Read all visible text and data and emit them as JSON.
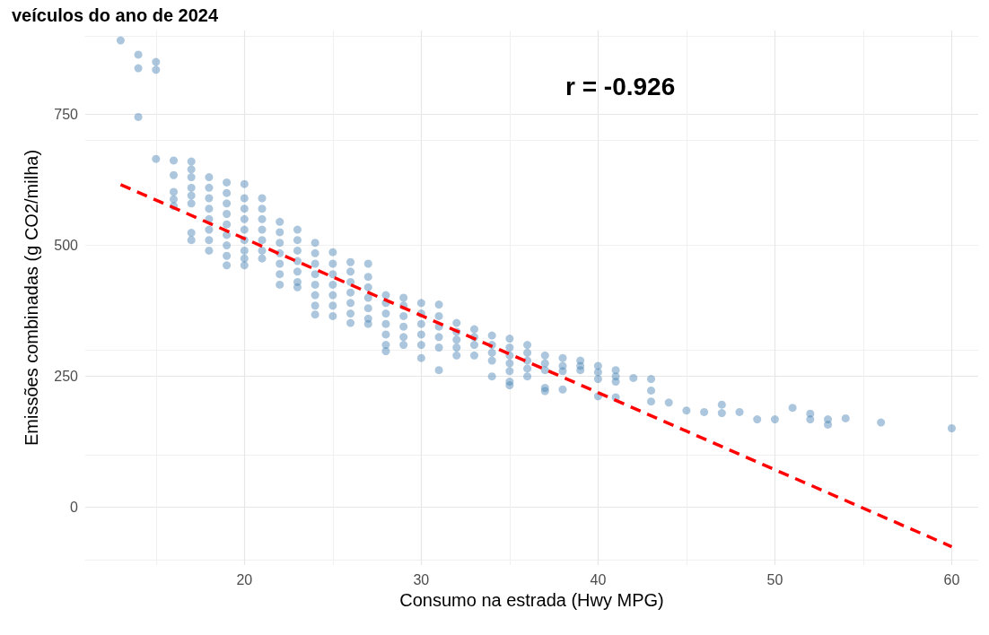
{
  "chart_data": {
    "type": "scatter",
    "title": "veículos do ano de 2024",
    "xlabel": "Consumo na estrada (Hwy MPG)",
    "ylabel": "Emissões combinadas (g CO2/milha)",
    "annotations": [
      "r = -0.926"
    ],
    "xlim": [
      11,
      61.5
    ],
    "ylim": [
      -110,
      910
    ],
    "xticks": [
      20,
      30,
      40,
      50,
      60
    ],
    "yticks": [
      0,
      250,
      500,
      750
    ],
    "grid": true,
    "marker": "circle",
    "series": [
      {
        "color": "#4682b4",
        "x": [
          13,
          14,
          14,
          14,
          15,
          15,
          15,
          16,
          16,
          16,
          16,
          16,
          17,
          17,
          17,
          17,
          17,
          17,
          17,
          17,
          18,
          18,
          18,
          18,
          18,
          18,
          18,
          18,
          19,
          19,
          19,
          19,
          19,
          19,
          19,
          19,
          19,
          20,
          20,
          20,
          20,
          20,
          20,
          20,
          20,
          20,
          21,
          21,
          21,
          21,
          21,
          21,
          21,
          22,
          22,
          22,
          22,
          22,
          22,
          22,
          23,
          23,
          23,
          23,
          23,
          23,
          23,
          24,
          24,
          24,
          24,
          24,
          24,
          24,
          24,
          25,
          25,
          25,
          25,
          25,
          25,
          25,
          26,
          26,
          26,
          26,
          26,
          26,
          26,
          27,
          27,
          27,
          27,
          27,
          27,
          27,
          28,
          28,
          28,
          28,
          28,
          28,
          28,
          29,
          29,
          29,
          29,
          29,
          29,
          30,
          30,
          30,
          30,
          30,
          30,
          31,
          31,
          31,
          31,
          31,
          31,
          32,
          32,
          32,
          32,
          32,
          33,
          33,
          33,
          33,
          34,
          34,
          34,
          34,
          34,
          35,
          35,
          35,
          35,
          35,
          35,
          35,
          36,
          36,
          36,
          36,
          36,
          37,
          37,
          37,
          37,
          37,
          38,
          38,
          38,
          38,
          39,
          39,
          39,
          40,
          40,
          40,
          40,
          41,
          41,
          41,
          41,
          42,
          43,
          43,
          43,
          44,
          45,
          46,
          47,
          47,
          48,
          49,
          50,
          51,
          52,
          52,
          53,
          53,
          54,
          56,
          60
        ],
        "values": [
          891,
          864,
          838,
          745,
          850,
          835,
          665,
          662,
          634,
          602,
          588,
          575,
          660,
          645,
          630,
          610,
          595,
          580,
          524,
          510,
          630,
          610,
          590,
          570,
          550,
          530,
          510,
          490,
          620,
          600,
          580,
          560,
          540,
          520,
          500,
          480,
          462,
          617,
          590,
          570,
          550,
          530,
          510,
          490,
          475,
          462,
          590,
          570,
          550,
          530,
          510,
          490,
          475,
          545,
          525,
          505,
          485,
          465,
          445,
          425,
          530,
          510,
          490,
          470,
          450,
          430,
          420,
          505,
          485,
          465,
          445,
          425,
          405,
          385,
          368,
          487,
          465,
          445,
          425,
          405,
          385,
          365,
          468,
          450,
          430,
          410,
          390,
          370,
          352,
          465,
          440,
          420,
          400,
          380,
          360,
          350,
          405,
          390,
          370,
          350,
          330,
          310,
          298,
          400,
          385,
          365,
          345,
          325,
          310,
          390,
          370,
          350,
          330,
          310,
          285,
          387,
          365,
          345,
          325,
          305,
          262,
          352,
          335,
          320,
          305,
          290,
          340,
          325,
          310,
          290,
          328,
          310,
          295,
          280,
          250,
          322,
          305,
          290,
          275,
          260,
          240,
          233,
          310,
          295,
          280,
          265,
          250,
          290,
          275,
          262,
          228,
          222,
          285,
          270,
          260,
          225,
          280,
          270,
          262,
          270,
          258,
          245,
          212,
          262,
          250,
          240,
          210,
          247,
          245,
          223,
          202,
          200,
          185,
          182,
          196,
          180,
          182,
          168,
          168,
          190,
          179,
          168,
          168,
          158,
          170,
          162,
          151
        ]
      },
      {
        "type": "line",
        "color": "#ff0000",
        "line_style": "dashed",
        "marker": "none",
        "x": [
          13,
          60
        ],
        "values": [
          616,
          -75
        ]
      }
    ]
  }
}
